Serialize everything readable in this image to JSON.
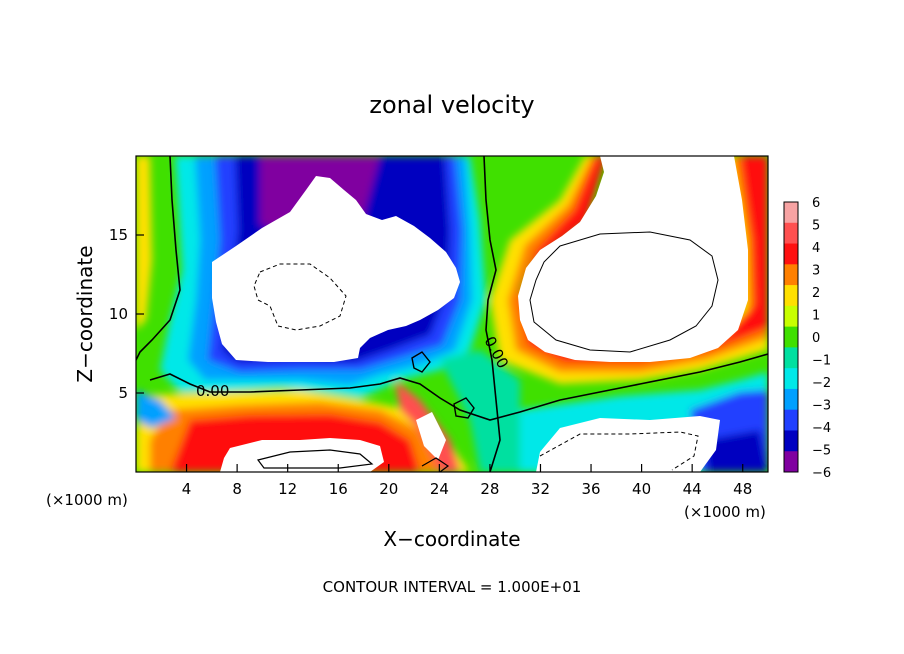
{
  "chart_data": {
    "type": "heatmap",
    "title": "zonal velocity",
    "xlabel": "X−coordinate",
    "ylabel": "Z−coordinate",
    "x_unit_left": "(×1000 m)",
    "x_unit_right": "(×1000 m)",
    "xlim": [
      0,
      50
    ],
    "ylim": [
      0,
      20
    ],
    "x_ticks": [
      "4",
      "8",
      "12",
      "16",
      "20",
      "24",
      "28",
      "32",
      "36",
      "40",
      "44",
      "48"
    ],
    "y_ticks": [
      "5",
      "10",
      "15"
    ],
    "colorbar": {
      "labels": [
        "6",
        "5",
        "4",
        "3",
        "2",
        "1",
        "0",
        "−1",
        "−2",
        "−3",
        "−4",
        "−5",
        "−6"
      ],
      "colors": [
        "#f7a3a3",
        "#ff5050",
        "#ff1010",
        "#ff8000",
        "#ffe000",
        "#c8ff00",
        "#40e000",
        "#00e0a0",
        "#00e8e8",
        "#00a0ff",
        "#2040ff",
        "#0000c0",
        "#8000a0"
      ]
    },
    "contour_labels": [
      "0.00",
      "0.00"
    ],
    "footer": "CONTOUR INTERVAL = 1.000E+01"
  }
}
